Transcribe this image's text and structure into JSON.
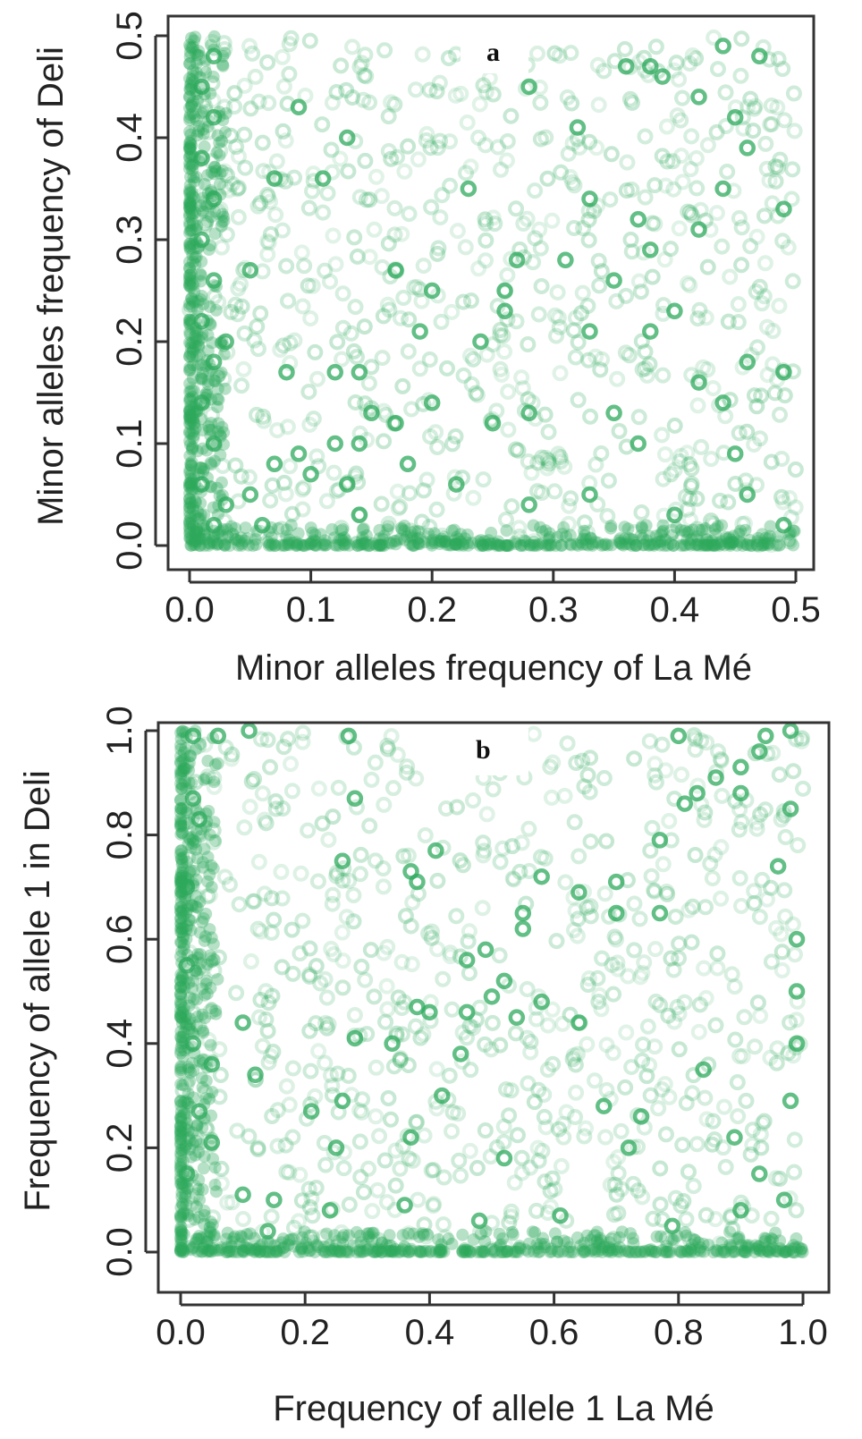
{
  "chart_data": [
    {
      "panel": "a",
      "type": "scatter",
      "xlabel": "Minor alleles frequency of La Mé",
      "ylabel": "Minor alleles frequency of Deli",
      "xlim": [
        0.0,
        0.5
      ],
      "ylim": [
        0.0,
        0.5
      ],
      "xticks": [
        "0.0",
        "0.1",
        "0.2",
        "0.3",
        "0.4",
        "0.5"
      ],
      "yticks": [
        "0.0",
        "0.1",
        "0.2",
        "0.3",
        "0.4",
        "0.5"
      ],
      "grid": false,
      "color": "#2eaa5c",
      "points": [
        [
          0.09,
          0.43
        ],
        [
          0.39,
          0.46
        ],
        [
          0.38,
          0.47
        ],
        [
          0.44,
          0.49
        ],
        [
          0.47,
          0.48
        ],
        [
          0.45,
          0.42
        ],
        [
          0.36,
          0.47
        ],
        [
          0.28,
          0.45
        ],
        [
          0.32,
          0.41
        ],
        [
          0.42,
          0.44
        ],
        [
          0.13,
          0.4
        ],
        [
          0.11,
          0.36
        ],
        [
          0.07,
          0.36
        ],
        [
          0.23,
          0.35
        ],
        [
          0.44,
          0.35
        ],
        [
          0.46,
          0.39
        ],
        [
          0.33,
          0.34
        ],
        [
          0.37,
          0.32
        ],
        [
          0.42,
          0.31
        ],
        [
          0.49,
          0.33
        ],
        [
          0.05,
          0.27
        ],
        [
          0.17,
          0.27
        ],
        [
          0.2,
          0.25
        ],
        [
          0.26,
          0.25
        ],
        [
          0.27,
          0.28
        ],
        [
          0.35,
          0.26
        ],
        [
          0.38,
          0.29
        ],
        [
          0.4,
          0.23
        ],
        [
          0.31,
          0.28
        ],
        [
          0.24,
          0.2
        ],
        [
          0.26,
          0.23
        ],
        [
          0.33,
          0.21
        ],
        [
          0.38,
          0.21
        ],
        [
          0.42,
          0.16
        ],
        [
          0.46,
          0.18
        ],
        [
          0.49,
          0.17
        ],
        [
          0.44,
          0.14
        ],
        [
          0.08,
          0.17
        ],
        [
          0.12,
          0.17
        ],
        [
          0.14,
          0.17
        ],
        [
          0.19,
          0.21
        ],
        [
          0.03,
          0.2
        ],
        [
          0.15,
          0.13
        ],
        [
          0.17,
          0.12
        ],
        [
          0.2,
          0.14
        ],
        [
          0.25,
          0.12
        ],
        [
          0.28,
          0.13
        ],
        [
          0.35,
          0.13
        ],
        [
          0.37,
          0.1
        ],
        [
          0.45,
          0.09
        ],
        [
          0.09,
          0.09
        ],
        [
          0.12,
          0.1
        ],
        [
          0.14,
          0.1
        ],
        [
          0.1,
          0.07
        ],
        [
          0.07,
          0.08
        ],
        [
          0.13,
          0.06
        ],
        [
          0.05,
          0.05
        ],
        [
          0.18,
          0.08
        ],
        [
          0.22,
          0.06
        ],
        [
          0.28,
          0.04
        ],
        [
          0.33,
          0.05
        ],
        [
          0.4,
          0.03
        ],
        [
          0.46,
          0.05
        ],
        [
          0.49,
          0.02
        ],
        [
          0.14,
          0.03
        ],
        [
          0.06,
          0.02
        ],
        [
          0.02,
          0.48
        ],
        [
          0.01,
          0.45
        ],
        [
          0.02,
          0.42
        ],
        [
          0.01,
          0.38
        ],
        [
          0.02,
          0.34
        ],
        [
          0.01,
          0.3
        ],
        [
          0.02,
          0.26
        ],
        [
          0.01,
          0.22
        ],
        [
          0.02,
          0.18
        ],
        [
          0.01,
          0.14
        ],
        [
          0.02,
          0.1
        ],
        [
          0.01,
          0.06
        ],
        [
          0.03,
          0.04
        ],
        [
          0.02,
          0.02
        ]
      ]
    },
    {
      "panel": "b",
      "type": "scatter",
      "xlabel": "Frequency of allele 1 La Mé",
      "ylabel": "Frequency of allele 1 in Deli",
      "xlim": [
        0.0,
        1.0
      ],
      "ylim": [
        0.0,
        1.0
      ],
      "xticks": [
        "0.0",
        "0.2",
        "0.4",
        "0.6",
        "0.8",
        "1.0"
      ],
      "yticks": [
        "0.0",
        "0.2",
        "0.4",
        "0.6",
        "0.8",
        "1.0"
      ],
      "grid": false,
      "color": "#2eaa5c",
      "points": [
        [
          0.02,
          0.99
        ],
        [
          0.06,
          0.99
        ],
        [
          0.11,
          1.0
        ],
        [
          0.27,
          0.99
        ],
        [
          0.8,
          0.99
        ],
        [
          0.94,
          0.99
        ],
        [
          0.98,
          1.0
        ],
        [
          0.93,
          0.96
        ],
        [
          0.9,
          0.93
        ],
        [
          0.86,
          0.91
        ],
        [
          0.83,
          0.88
        ],
        [
          0.81,
          0.86
        ],
        [
          0.9,
          0.88
        ],
        [
          0.96,
          0.74
        ],
        [
          0.77,
          0.79
        ],
        [
          0.26,
          0.75
        ],
        [
          0.37,
          0.73
        ],
        [
          0.38,
          0.71
        ],
        [
          0.41,
          0.77
        ],
        [
          0.7,
          0.71
        ],
        [
          0.02,
          0.87
        ],
        [
          0.03,
          0.83
        ],
        [
          0.28,
          0.87
        ],
        [
          0.55,
          0.65
        ],
        [
          0.55,
          0.62
        ],
        [
          0.64,
          0.69
        ],
        [
          0.7,
          0.65
        ],
        [
          0.77,
          0.65
        ],
        [
          0.58,
          0.72
        ],
        [
          0.46,
          0.56
        ],
        [
          0.49,
          0.58
        ],
        [
          0.52,
          0.52
        ],
        [
          0.5,
          0.49
        ],
        [
          0.46,
          0.46
        ],
        [
          0.38,
          0.47
        ],
        [
          0.4,
          0.46
        ],
        [
          0.54,
          0.45
        ],
        [
          0.58,
          0.48
        ],
        [
          0.64,
          0.44
        ],
        [
          0.45,
          0.38
        ],
        [
          0.34,
          0.4
        ],
        [
          0.28,
          0.41
        ],
        [
          0.1,
          0.44
        ],
        [
          0.05,
          0.36
        ],
        [
          0.12,
          0.34
        ],
        [
          0.21,
          0.27
        ],
        [
          0.25,
          0.2
        ],
        [
          0.26,
          0.29
        ],
        [
          0.37,
          0.22
        ],
        [
          0.42,
          0.3
        ],
        [
          0.52,
          0.18
        ],
        [
          0.68,
          0.28
        ],
        [
          0.72,
          0.2
        ],
        [
          0.74,
          0.26
        ],
        [
          0.84,
          0.35
        ],
        [
          0.89,
          0.22
        ],
        [
          0.93,
          0.15
        ],
        [
          0.98,
          0.29
        ],
        [
          0.1,
          0.11
        ],
        [
          0.15,
          0.1
        ],
        [
          0.24,
          0.08
        ],
        [
          0.36,
          0.09
        ],
        [
          0.48,
          0.06
        ],
        [
          0.61,
          0.07
        ],
        [
          0.79,
          0.05
        ],
        [
          0.9,
          0.08
        ],
        [
          0.03,
          0.27
        ],
        [
          0.05,
          0.21
        ],
        [
          0.14,
          0.04
        ],
        [
          0.99,
          0.6
        ],
        [
          0.99,
          0.5
        ],
        [
          0.99,
          0.4
        ],
        [
          0.98,
          0.85
        ],
        [
          0.01,
          0.7
        ],
        [
          0.01,
          0.55
        ],
        [
          0.02,
          0.4
        ],
        [
          0.01,
          0.15
        ],
        [
          0.97,
          0.1
        ]
      ]
    }
  ]
}
